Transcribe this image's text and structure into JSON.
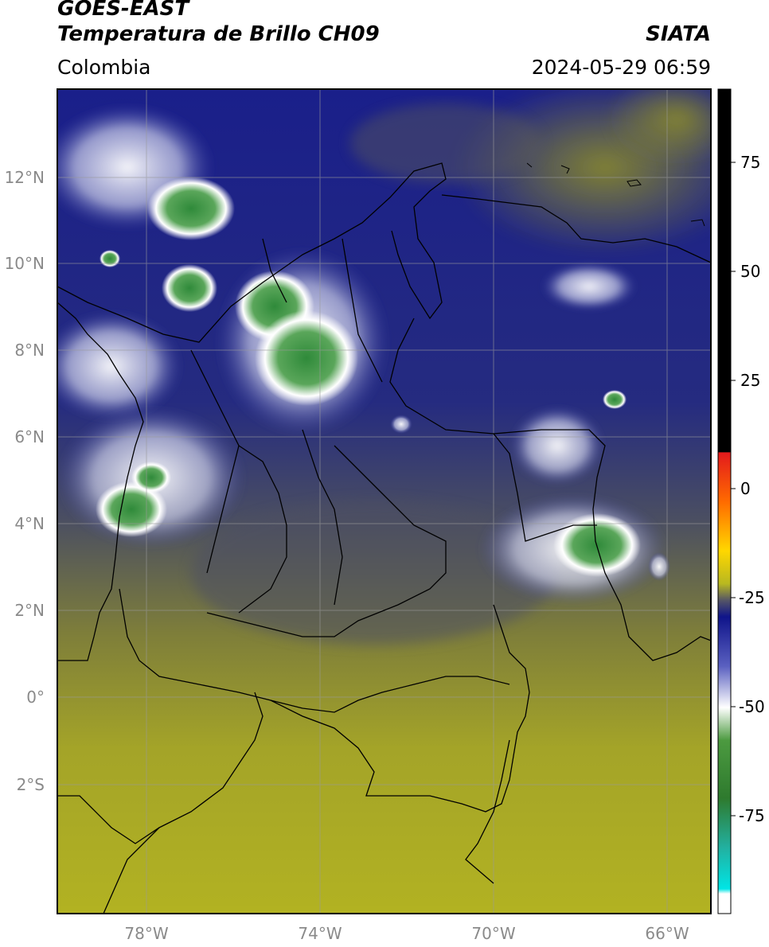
{
  "header": {
    "satellite": "GOES-EAST",
    "product": "Temperatura de Brillo CH09",
    "region": "Colombia",
    "source": "SIATA",
    "datetime": "2024-05-29 06:59"
  },
  "map": {
    "lat_labels": [
      "12°N",
      "10°N",
      "8°N",
      "6°N",
      "4°N",
      "2°N",
      "0°",
      "2°S"
    ],
    "lon_labels": [
      "78°W",
      "74°W",
      "70°W",
      "66°W"
    ],
    "colors": {
      "ocean_background": "#1a1f8a",
      "dry_south": "#9a9a22",
      "coastline": "#000000",
      "grid": "#9a9a9a"
    }
  },
  "colorbar": {
    "tick_labels": [
      "75",
      "50",
      "25",
      "0",
      "-25",
      "-50",
      "-75"
    ],
    "color_stops": [
      "#000000",
      "#e31a1c",
      "#ff8c00",
      "#ffd700",
      "#b8b820",
      "#555566",
      "#1a1f8a",
      "#4a50b0",
      "#ffffff",
      "#3d8c2e",
      "#2aa37a",
      "#00e5e5",
      "#ffffff"
    ]
  }
}
